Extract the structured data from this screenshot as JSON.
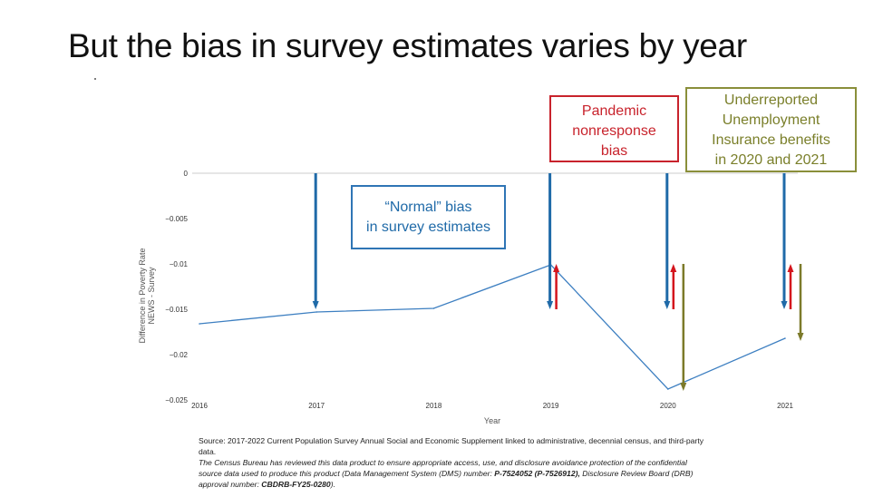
{
  "slide": {
    "title": "But the bias in survey estimates varies by year"
  },
  "annotations": {
    "normal": [
      "“Normal” bias",
      "in survey estimates"
    ],
    "pandemic": [
      "Pandemic",
      "nonresponse",
      "bias"
    ],
    "ui": [
      "Underreported",
      "Unemployment",
      "Insurance benefits",
      "in 2020 and 2021"
    ]
  },
  "source": {
    "line1": "Source: 2017-2022 Current Population Survey Annual Social and Economic Supplement linked to administrative, decennial census, and third-party data.",
    "line2_prefix": "The Census Bureau has reviewed this data product to ensure appropriate access, use, and disclosure avoidance protection of the confidential source data used to produce this product (Data Management System (DMS) number:",
    "dms_number": "P-7524052 (P-7526912),",
    "line2_mid": "Disclosure Review Board (DRB) approval number:",
    "drb_number": "CBDRB-FY25-0280",
    "line2_end": ")."
  },
  "colors": {
    "line": "#3d7fc1",
    "blue_arrow": "#1f6aa8",
    "red_arrow": "#d4151d",
    "olive_arrow": "#7c7a2a",
    "axis": "#cccccc"
  },
  "chart_data": {
    "type": "line",
    "title": "",
    "xlabel": "Year",
    "ylabel_lines": [
      "Difference in Poverty Rate",
      "NEWS - Survey"
    ],
    "x": [
      2016,
      2017,
      2018,
      2019,
      2020,
      2021
    ],
    "x_ticks": [
      "2016",
      "2017",
      "2018",
      "2019",
      "2020",
      "2021"
    ],
    "y": [
      -0.0166,
      -0.0153,
      -0.0149,
      -0.0101,
      -0.0238,
      -0.0182
    ],
    "ylim": [
      -0.025,
      0
    ],
    "y_ticks": [
      0,
      -0.005,
      -0.01,
      -0.015,
      -0.02,
      -0.025
    ],
    "y_tick_labels": [
      "0",
      "−0.005",
      "−0.01",
      "−0.015",
      "−0.02",
      "−0.025"
    ],
    "arrows": [
      {
        "kind": "normal",
        "x": 2017,
        "from": 0,
        "to": -0.015
      },
      {
        "kind": "normal",
        "x": 2019,
        "from": 0,
        "to": -0.015
      },
      {
        "kind": "normal",
        "x": 2020,
        "from": 0,
        "to": -0.015
      },
      {
        "kind": "normal",
        "x": 2021,
        "from": 0,
        "to": -0.015
      },
      {
        "kind": "pandemic",
        "x": 2019,
        "from": -0.015,
        "to": -0.01
      },
      {
        "kind": "pandemic",
        "x": 2020,
        "from": -0.015,
        "to": -0.01
      },
      {
        "kind": "pandemic",
        "x": 2021,
        "from": -0.015,
        "to": -0.01
      },
      {
        "kind": "ui",
        "x": 2020,
        "from": -0.01,
        "to": -0.024
      },
      {
        "kind": "ui",
        "x": 2021,
        "from": -0.01,
        "to": -0.0185
      }
    ]
  }
}
